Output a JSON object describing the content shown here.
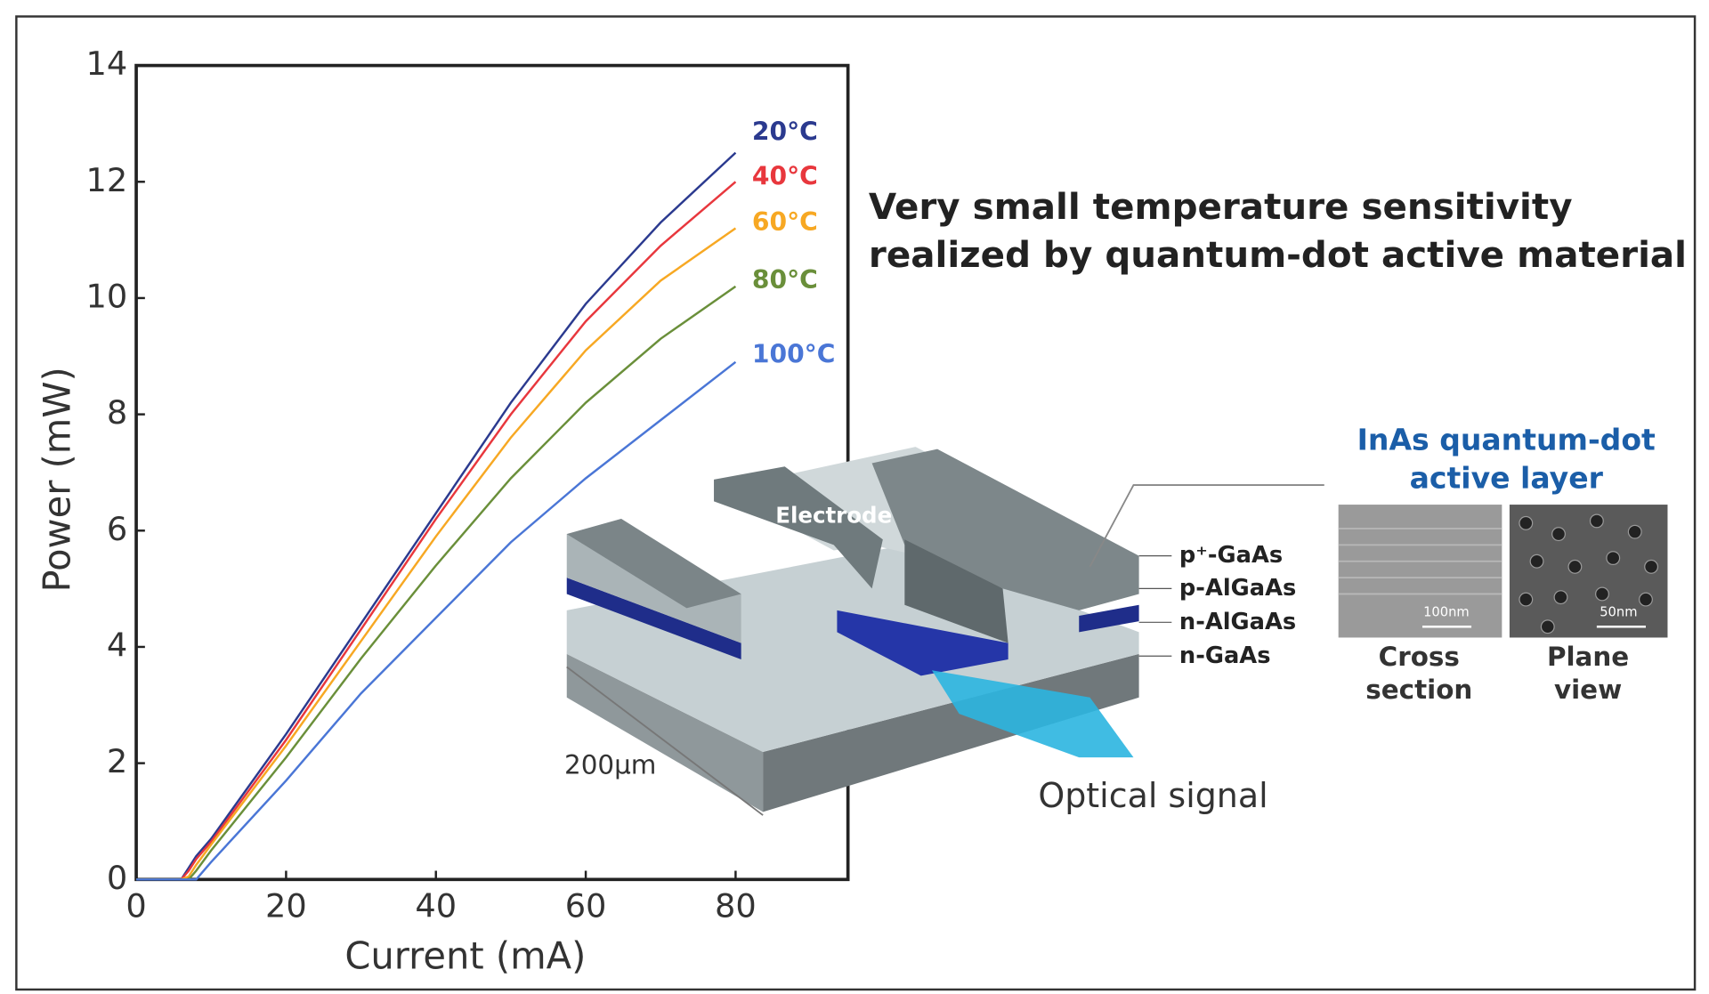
{
  "chart_data": {
    "type": "line",
    "title": [
      "Very small temperature sensitivity",
      "realized by quantum-dot active material"
    ],
    "x_label": "Current (mA)",
    "y_label": "Power (mW)",
    "x": [
      0,
      6,
      7,
      8,
      10,
      20,
      30,
      40,
      50,
      60,
      70,
      80
    ],
    "series": [
      {
        "name": "20°C",
        "color": "#2b3a8f",
        "values": [
          0,
          0,
          0.2,
          0.4,
          0.7,
          2.5,
          4.4,
          6.3,
          8.2,
          9.9,
          11.3,
          12.5
        ]
      },
      {
        "name": "40°C",
        "color": "#e8373d",
        "values": [
          0,
          0,
          0.15,
          0.35,
          0.65,
          2.4,
          4.3,
          6.2,
          8.0,
          9.6,
          10.9,
          12.0
        ]
      },
      {
        "name": "60°C",
        "color": "#f7a823",
        "values": [
          0,
          0,
          0.05,
          0.25,
          0.6,
          2.3,
          4.1,
          5.9,
          7.6,
          9.1,
          10.3,
          11.2
        ]
      },
      {
        "name": "80°C",
        "color": "#6a8f3a",
        "values": [
          0,
          0,
          0,
          0.15,
          0.5,
          2.1,
          3.8,
          5.4,
          6.9,
          8.2,
          9.3,
          10.2
        ]
      },
      {
        "name": "100°C",
        "color": "#4a76d6",
        "values": [
          0,
          0,
          0,
          0,
          0.3,
          1.7,
          3.2,
          4.5,
          5.8,
          6.9,
          7.9,
          8.9
        ]
      }
    ],
    "xlim": [
      0,
      95
    ],
    "ylim": [
      0,
      14
    ],
    "xticks": [
      0,
      20,
      40,
      60,
      80
    ],
    "yticks": [
      0,
      2,
      4,
      6,
      8,
      10,
      12,
      14
    ]
  },
  "diagram": {
    "electrode": "Electrode",
    "layers": [
      "p⁺-GaAs",
      "p-AlGaAs",
      "n-AlGaAs",
      "n-GaAs"
    ],
    "width": "200µm",
    "output": "Optical signal",
    "inset_title": [
      "InAs quantum-dot",
      "active layer"
    ],
    "scale_bars": [
      "100nm",
      "50nm"
    ],
    "captions": [
      [
        "Cross",
        "section"
      ],
      [
        "Plane",
        "view"
      ]
    ]
  }
}
